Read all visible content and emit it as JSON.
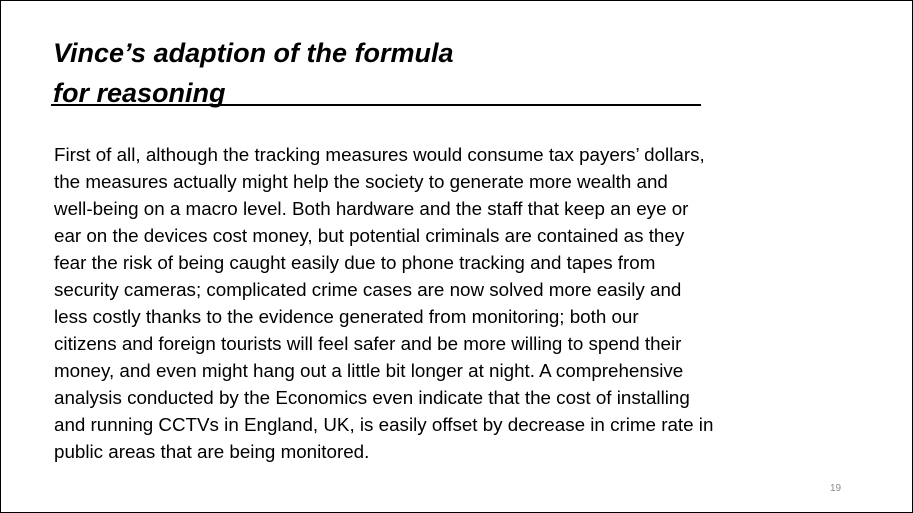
{
  "slide": {
    "title_lines": [
      "Vince’s adaption of the formula",
      "for reasoning"
    ],
    "body_lines": [
      "First of all, although the tracking measures would consume tax payers’ dollars,",
      "the measures actually might help the society to generate more wealth and",
      "well-being on a macro level. Both hardware and the staff that keep an eye or",
      "ear on the devices cost money, but potential criminals are contained as they",
      "fear the risk of being caught easily due to phone tracking and tapes from",
      "security cameras; complicated crime cases are now solved more easily and",
      "less costly thanks to the evidence generated from monitoring; both our",
      "citizens and foreign tourists will feel safer and be more willing to spend their",
      "money, and even might hang out a little bit longer at night. A comprehensive",
      "analysis conducted by the Economics even indicate that the cost of installing",
      "and running CCTVs in England, UK, is easily offset by decrease in crime rate in",
      "public areas that are being monitored."
    ],
    "page_number": "19"
  }
}
